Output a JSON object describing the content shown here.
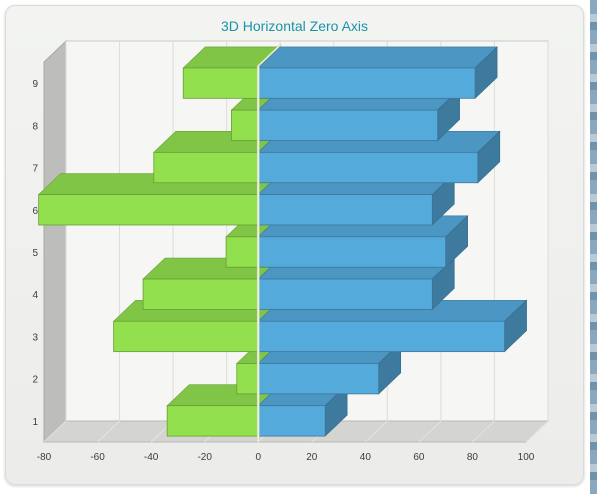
{
  "chart_data": {
    "type": "bar",
    "orientation": "horizontal",
    "style": "3d",
    "title": "3D Horizontal Zero Axis",
    "xlabel": "",
    "ylabel": "",
    "categories": [
      "1",
      "2",
      "3",
      "4",
      "5",
      "6",
      "7",
      "8",
      "9"
    ],
    "xlim": [
      -80,
      100
    ],
    "xticks": [
      -80,
      -60,
      -40,
      -20,
      0,
      20,
      40,
      60,
      80,
      100
    ],
    "grid": true,
    "legend": "none",
    "series": [
      {
        "values": [
          -34,
          -8,
          -54,
          -43,
          -12,
          -82,
          -39,
          -10,
          -28
        ],
        "color": "#92e04e"
      },
      {
        "values": [
          25,
          45,
          92,
          65,
          70,
          65,
          82,
          67,
          81
        ],
        "color": "#55aadc"
      }
    ]
  }
}
